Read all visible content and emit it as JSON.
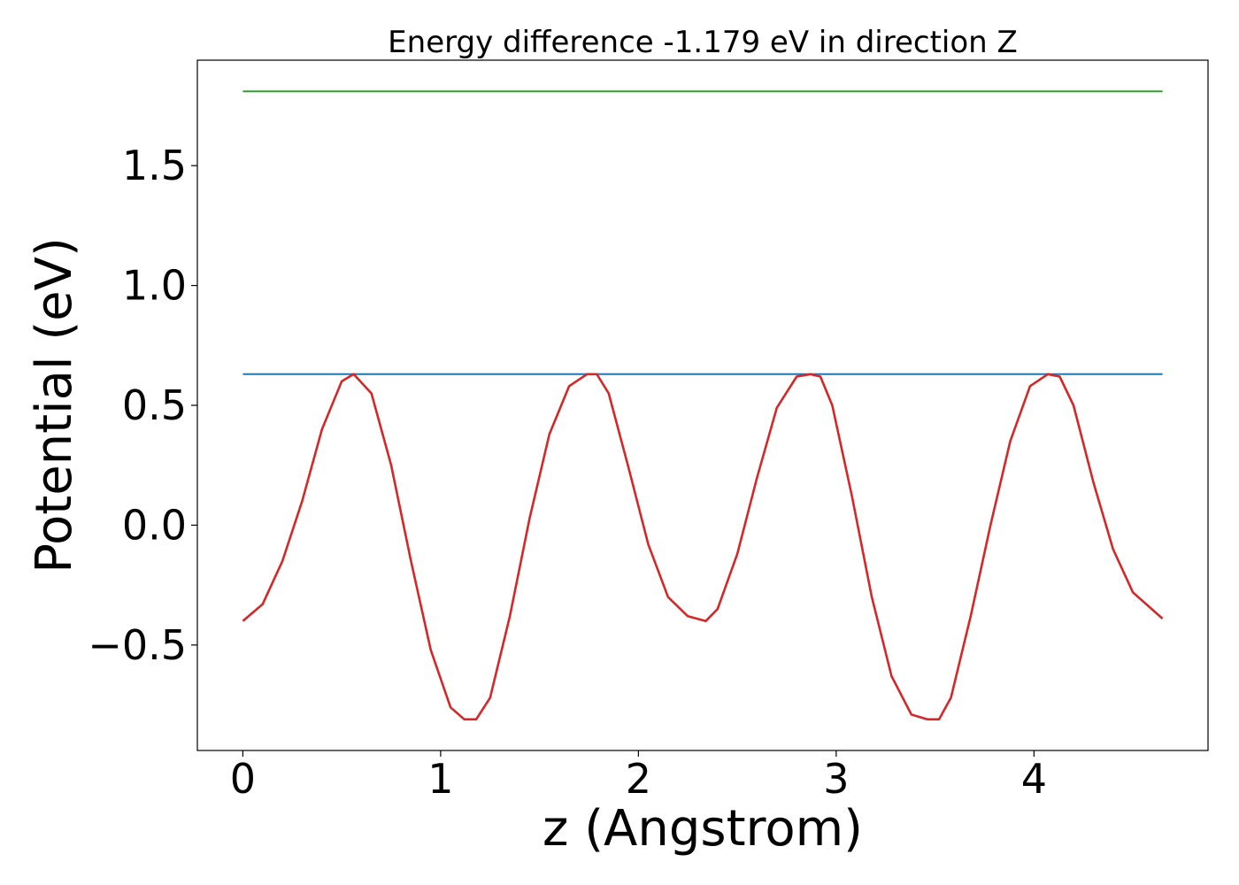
{
  "chart_data": {
    "type": "line",
    "title": "Energy difference -1.179 eV in direction Z",
    "xlabel": "z (Angstrom)",
    "ylabel": "Potential (eV)",
    "xlim": [
      -0.23,
      4.88
    ],
    "ylim": [
      -0.94,
      1.94
    ],
    "xticks": [
      0,
      1,
      2,
      3,
      4
    ],
    "xtick_labels": [
      "0",
      "1",
      "2",
      "3",
      "4"
    ],
    "yticks": [
      -0.5,
      0.0,
      0.5,
      1.0,
      1.5
    ],
    "ytick_labels": [
      "−0.5",
      "0.0",
      "0.5",
      "1.0",
      "1.5"
    ],
    "grid": false,
    "legend": "none",
    "series": [
      {
        "color": "#2ca02c",
        "style": "horizontal",
        "x": [
          0,
          4.65
        ],
        "y": [
          1.81,
          1.81
        ]
      },
      {
        "color": "#1f77b4",
        "style": "horizontal",
        "x": [
          0,
          4.65
        ],
        "y": [
          0.63,
          0.63
        ]
      },
      {
        "color": "#d62728",
        "style": "curve",
        "x": [
          0,
          0.1,
          0.2,
          0.3,
          0.4,
          0.5,
          0.56,
          0.65,
          0.75,
          0.85,
          0.95,
          1.05,
          1.12,
          1.18,
          1.25,
          1.35,
          1.45,
          1.55,
          1.65,
          1.74,
          1.79,
          1.85,
          1.95,
          2.05,
          2.15,
          2.25,
          2.34,
          2.4,
          2.5,
          2.6,
          2.7,
          2.8,
          2.87,
          2.92,
          2.98,
          3.08,
          3.18,
          3.28,
          3.38,
          3.46,
          3.52,
          3.58,
          3.68,
          3.78,
          3.88,
          3.98,
          4.07,
          4.13,
          4.2,
          4.3,
          4.4,
          4.5,
          4.65
        ],
        "y": [
          -0.4,
          -0.33,
          -0.15,
          0.1,
          0.4,
          0.6,
          0.63,
          0.55,
          0.25,
          -0.15,
          -0.52,
          -0.76,
          -0.81,
          -0.81,
          -0.72,
          -0.38,
          0.03,
          0.38,
          0.58,
          0.63,
          0.63,
          0.55,
          0.24,
          -0.08,
          -0.3,
          -0.38,
          -0.4,
          -0.35,
          -0.12,
          0.2,
          0.49,
          0.62,
          0.63,
          0.62,
          0.5,
          0.12,
          -0.3,
          -0.63,
          -0.79,
          -0.81,
          -0.81,
          -0.72,
          -0.38,
          0.0,
          0.35,
          0.58,
          0.63,
          0.62,
          0.5,
          0.18,
          -0.1,
          -0.28,
          -0.39
        ]
      }
    ]
  }
}
